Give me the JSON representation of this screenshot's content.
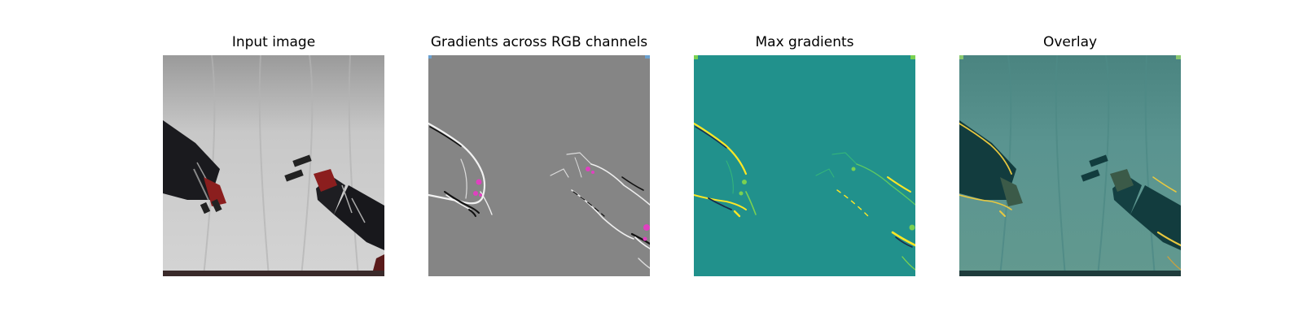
{
  "figure": {
    "panels": [
      {
        "title": "Input image",
        "image_kind": "robot-arms-photo"
      },
      {
        "title": "Gradients across RGB channels",
        "image_kind": "rgb-gradient-map"
      },
      {
        "title": "Max gradients",
        "image_kind": "max-gradient-heatmap"
      },
      {
        "title": "Overlay",
        "image_kind": "gradient-overlay-photo"
      }
    ],
    "colors": {
      "photo_background": "#c4c4c4",
      "gradient_background": "#858585",
      "heatmap_background": "#21918c",
      "overlay_tint": "#4f8c88",
      "highlight_yellow": "#fde725",
      "highlight_magenta": "#e040c0"
    }
  }
}
